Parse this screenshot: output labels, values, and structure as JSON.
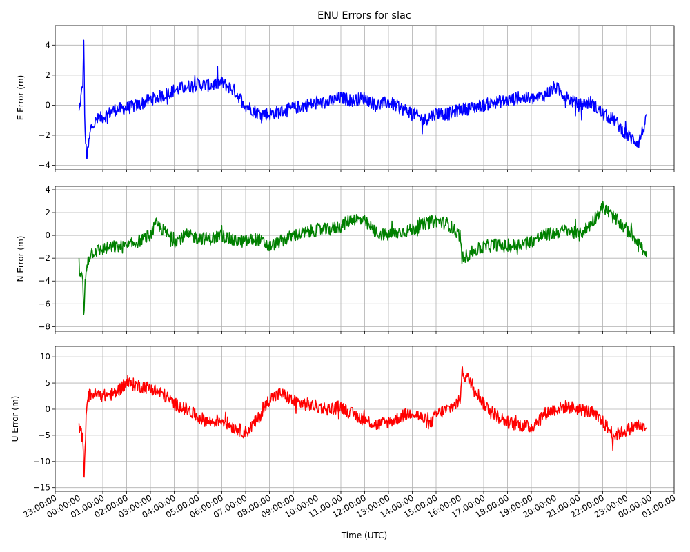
{
  "chart_data": {
    "type": "line",
    "title": "ENU Errors for slac",
    "xlabel": "Time (UTC)",
    "grid": true,
    "x_range_hours": [
      -1.0,
      25.0
    ],
    "x_tick_labels": [
      "23:00:00",
      "00:00:00",
      "01:00:00",
      "02:00:00",
      "03:00:00",
      "04:00:00",
      "05:00:00",
      "06:00:00",
      "07:00:00",
      "08:00:00",
      "09:00:00",
      "10:00:00",
      "11:00:00",
      "12:00:00",
      "13:00:00",
      "14:00:00",
      "15:00:00",
      "16:00:00",
      "17:00:00",
      "18:00:00",
      "19:00:00",
      "20:00:00",
      "21:00:00",
      "22:00:00",
      "23:00:00",
      "00:00:00",
      "01:00:00"
    ],
    "subplots": [
      {
        "ylabel": "E Error (m)",
        "color": "#0000ff",
        "ylim": [
          -4.3,
          5.3
        ],
        "yticks": [
          -4,
          -2,
          0,
          2,
          4
        ],
        "yticks_labels": [
          "−4",
          "−2",
          "0",
          "2",
          "4"
        ],
        "x": [
          "00:00",
          "00:10",
          "00:12",
          "00:15",
          "00:20",
          "00:30",
          "00:45",
          "01:00",
          "01:30",
          "02:00",
          "02:30",
          "03:00",
          "03:30",
          "04:00",
          "04:30",
          "05:00",
          "05:30",
          "06:00",
          "06:30",
          "07:00",
          "07:30",
          "08:00",
          "08:30",
          "09:00",
          "09:30",
          "10:00",
          "10:30",
          "11:00",
          "11:30",
          "12:00",
          "12:30",
          "13:00",
          "13:30",
          "14:00",
          "14:30",
          "15:00",
          "15:30",
          "16:00",
          "16:30",
          "17:00",
          "17:30",
          "18:00",
          "18:30",
          "19:00",
          "19:30",
          "20:00",
          "20:30",
          "21:00",
          "21:30",
          "22:00",
          "22:30",
          "23:00",
          "23:30",
          "23:50"
        ],
        "values": [
          -0.5,
          1.5,
          4.8,
          -2.0,
          -3.5,
          -1.5,
          -1.0,
          -0.8,
          -0.3,
          -0.2,
          0.0,
          0.4,
          0.6,
          1.0,
          1.2,
          1.4,
          1.3,
          1.5,
          1.0,
          0.0,
          -0.5,
          -0.6,
          -0.4,
          -0.2,
          0.0,
          0.1,
          0.2,
          0.5,
          0.3,
          0.5,
          0.0,
          0.2,
          -0.2,
          -0.5,
          -1.0,
          -0.5,
          -0.6,
          -0.3,
          -0.2,
          0.0,
          0.2,
          0.3,
          0.5,
          0.4,
          0.6,
          1.2,
          0.5,
          0.0,
          0.2,
          -0.6,
          -1.0,
          -2.0,
          -2.5,
          -1.0
        ]
      },
      {
        "ylabel": "N Error (m)",
        "color": "#008000",
        "ylim": [
          -8.4,
          4.3
        ],
        "yticks": [
          -8,
          -6,
          -4,
          -2,
          0,
          2,
          4
        ],
        "yticks_labels": [
          "−8",
          "−6",
          "−4",
          "−2",
          "0",
          "2",
          "4"
        ],
        "x": [
          "00:00",
          "00:10",
          "00:12",
          "00:15",
          "00:20",
          "00:30",
          "01:00",
          "01:30",
          "02:00",
          "02:30",
          "03:00",
          "03:15",
          "03:30",
          "04:00",
          "04:30",
          "05:00",
          "05:30",
          "06:00",
          "06:30",
          "07:00",
          "07:30",
          "08:00",
          "08:30",
          "09:00",
          "09:30",
          "10:00",
          "10:30",
          "11:00",
          "11:30",
          "12:00",
          "12:30",
          "13:00",
          "13:30",
          "14:00",
          "14:30",
          "15:00",
          "15:30",
          "16:00",
          "16:05",
          "16:30",
          "17:00",
          "17:30",
          "18:00",
          "18:30",
          "19:00",
          "19:30",
          "20:00",
          "20:30",
          "21:00",
          "21:30",
          "22:00",
          "22:30",
          "23:00",
          "23:30",
          "23:50"
        ],
        "values": [
          -3.0,
          -4.0,
          -7.5,
          -4.5,
          -2.5,
          -1.5,
          -1.2,
          -1.0,
          -1.0,
          -0.5,
          0.0,
          1.0,
          0.5,
          -0.5,
          0.0,
          -0.2,
          -0.3,
          0.0,
          -0.5,
          -0.5,
          -0.3,
          -1.0,
          -0.5,
          0.0,
          0.2,
          0.5,
          0.5,
          0.8,
          1.5,
          1.2,
          0.2,
          0.0,
          0.3,
          0.5,
          1.0,
          1.3,
          1.0,
          0.0,
          -2.0,
          -1.5,
          -1.0,
          -0.8,
          -1.0,
          -0.8,
          -0.5,
          0.0,
          0.2,
          0.5,
          0.0,
          1.0,
          2.5,
          1.5,
          0.5,
          -0.5,
          -2.0
        ]
      },
      {
        "ylabel": "U Error (m)",
        "color": "#ff0000",
        "ylim": [
          -15.7,
          12.0
        ],
        "yticks": [
          -15,
          -10,
          -5,
          0,
          5,
          10
        ],
        "yticks_labels": [
          "−15",
          "−10",
          "−5",
          "0",
          "5",
          "10"
        ],
        "x": [
          "00:00",
          "00:10",
          "00:12",
          "00:15",
          "00:20",
          "00:30",
          "01:00",
          "01:30",
          "02:00",
          "02:30",
          "03:00",
          "03:30",
          "04:00",
          "04:30",
          "05:00",
          "05:30",
          "06:00",
          "06:30",
          "07:00",
          "07:30",
          "08:00",
          "08:30",
          "09:00",
          "09:30",
          "10:00",
          "10:30",
          "11:00",
          "11:30",
          "12:00",
          "12:30",
          "13:00",
          "13:30",
          "14:00",
          "14:30",
          "14:45",
          "15:00",
          "15:30",
          "16:00",
          "16:05",
          "16:30",
          "17:00",
          "17:30",
          "18:00",
          "18:30",
          "19:00",
          "19:30",
          "20:00",
          "20:30",
          "21:00",
          "21:30",
          "22:00",
          "22:30",
          "23:00",
          "23:30",
          "23:50"
        ],
        "values": [
          -3.0,
          -6.0,
          -14.0,
          -8.0,
          2.0,
          3.0,
          2.5,
          3.0,
          5.0,
          4.5,
          4.0,
          3.0,
          1.0,
          0.0,
          -1.5,
          -2.5,
          -2.0,
          -3.5,
          -4.5,
          -2.0,
          2.0,
          3.0,
          1.5,
          1.0,
          0.5,
          0.0,
          0.5,
          -1.0,
          -2.0,
          -3.0,
          -2.5,
          -1.5,
          -0.5,
          -2.0,
          -3.0,
          -1.0,
          0.0,
          1.5,
          7.0,
          5.0,
          1.0,
          -1.0,
          -2.5,
          -3.0,
          -3.5,
          -1.0,
          0.0,
          0.5,
          0.0,
          -0.5,
          -2.5,
          -5.0,
          -4.0,
          -3.0,
          -4.0
        ]
      }
    ]
  }
}
